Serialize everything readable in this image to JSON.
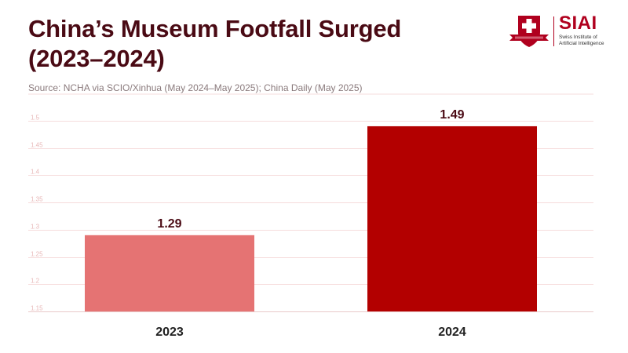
{
  "header": {
    "title_line1": "China’s Museum Footfall Surged",
    "title_line2": "(2023–2024)",
    "source": "Source: NCHA via SCIO/Xinhua (May 2024–May 2025); China Daily (May 2025)"
  },
  "logo": {
    "name": "SIAI",
    "subtitle_line1": "Swiss Institute of",
    "subtitle_line2": "Artificial Intelligence"
  },
  "colors": {
    "title": "#4a0a14",
    "bar_2023": "#e57373",
    "bar_2024": "#b30000",
    "gridline": "#f6dcdc",
    "tick_label": "#e8b8b8"
  },
  "chart_data": {
    "type": "bar",
    "title": "China’s Museum Footfall Surged (2023–2024)",
    "xlabel": "",
    "ylabel": "",
    "categories": [
      "2023",
      "2024"
    ],
    "values": [
      1.29,
      1.49
    ],
    "value_labels": [
      "1.29",
      "1.49"
    ],
    "ylim": [
      1.15,
      1.5
    ],
    "yticks": [
      1.15,
      1.2,
      1.25,
      1.3,
      1.35,
      1.4,
      1.45,
      1.5
    ],
    "ytick_labels": [
      "1.15",
      "1.2",
      "1.25",
      "1.3",
      "1.35",
      "1.4",
      "1.45",
      "1.5"
    ],
    "grid": true,
    "legend": "none"
  }
}
